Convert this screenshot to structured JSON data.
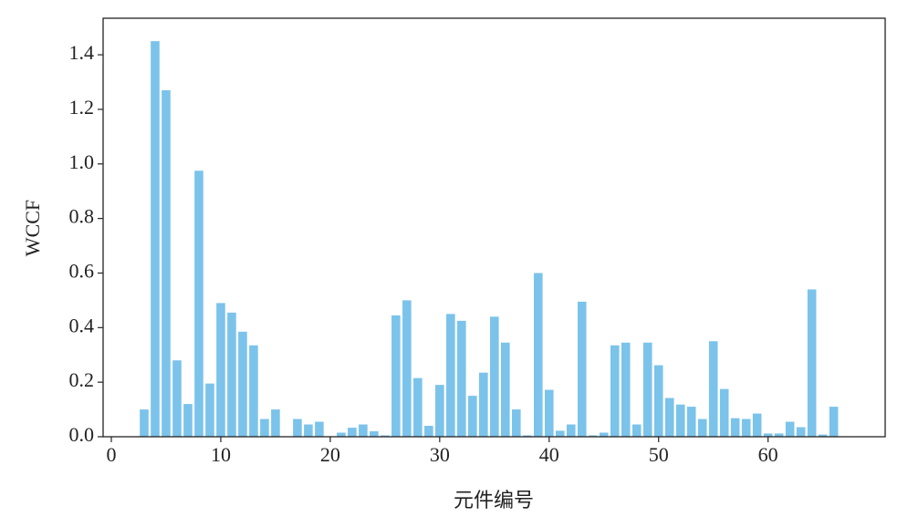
{
  "chart_data": {
    "type": "bar",
    "x": [
      3,
      4,
      5,
      6,
      7,
      8,
      9,
      10,
      11,
      12,
      13,
      14,
      15,
      16,
      17,
      18,
      19,
      20,
      21,
      22,
      23,
      24,
      25,
      26,
      27,
      28,
      29,
      30,
      31,
      32,
      33,
      34,
      35,
      36,
      37,
      38,
      39,
      40,
      41,
      42,
      43,
      44,
      45,
      46,
      47,
      48,
      49,
      50,
      51,
      52,
      53,
      54,
      55,
      56,
      57,
      58,
      59,
      60,
      61,
      62,
      63,
      64,
      65,
      66
    ],
    "values": [
      0.1,
      1.45,
      1.27,
      0.28,
      0.12,
      0.975,
      0.195,
      0.49,
      0.455,
      0.385,
      0.335,
      0.065,
      0.1,
      0,
      0.065,
      0.045,
      0.055,
      0,
      0.015,
      0.033,
      0.045,
      0.02,
      0.005,
      0.445,
      0.5,
      0.215,
      0.04,
      0.19,
      0.45,
      0.425,
      0.15,
      0.235,
      0.44,
      0.345,
      0.1,
      0.005,
      0.6,
      0.172,
      0.022,
      0.045,
      0.495,
      0.005,
      0.015,
      0.335,
      0.345,
      0.045,
      0.345,
      0.262,
      0.142,
      0.118,
      0.11,
      0.065,
      0.35,
      0.175,
      0.068,
      0.065,
      0.085,
      0.012,
      0.012,
      0.055,
      0.035,
      0.54,
      0.008,
      0.11
    ],
    "color": "#7bc3ea",
    "xlabel": "元件编号",
    "ylabel": "WCCF",
    "xlim": [
      -0.75,
      70.7
    ],
    "xticks": [
      0,
      10,
      20,
      30,
      40,
      50,
      60
    ],
    "ylim": [
      0,
      1.534
    ],
    "yticks": [
      {
        "value": 0,
        "label": "0.0"
      },
      {
        "value": 0.2,
        "label": "0.2"
      },
      {
        "value": 0.4,
        "label": "0.4"
      },
      {
        "value": 0.6,
        "label": "0.6"
      },
      {
        "value": 0.8,
        "label": "0.8"
      },
      {
        "value": 1.0,
        "label": "1.0"
      },
      {
        "value": 1.2,
        "label": "1.2"
      },
      {
        "value": 1.4,
        "label": "1.4"
      }
    ],
    "grid": false
  }
}
